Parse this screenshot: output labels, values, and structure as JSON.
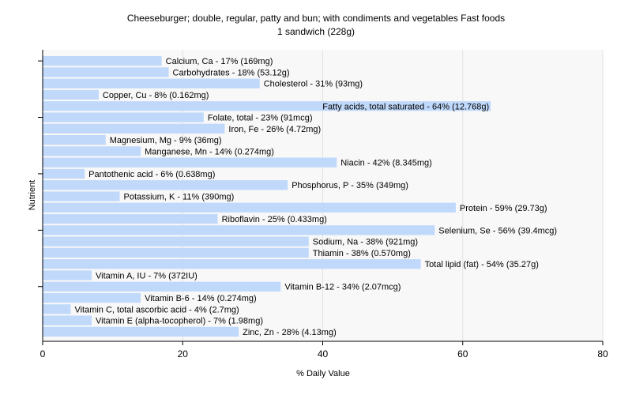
{
  "chart_data": {
    "type": "bar",
    "orientation": "horizontal",
    "title": "Cheeseburger; double, regular, patty and bun; with condiments and vegetables Fast foods",
    "subtitle": "1 sandwich (228g)",
    "xlabel": "% Daily Value",
    "ylabel": "Nutrient",
    "xlim": [
      0,
      80
    ],
    "xticks": [
      0,
      20,
      40,
      60,
      80
    ],
    "grid": true,
    "bar_color": "#c0d9fb",
    "categories": [
      "Calcium, Ca",
      "Carbohydrates",
      "Cholesterol",
      "Copper, Cu",
      "Fatty acids, total saturated",
      "Folate, total",
      "Iron, Fe",
      "Magnesium, Mg",
      "Manganese, Mn",
      "Niacin",
      "Pantothenic acid",
      "Phosphorus, P",
      "Potassium, K",
      "Protein",
      "Riboflavin",
      "Selenium, Se",
      "Sodium, Na",
      "Thiamin",
      "Total lipid (fat)",
      "Vitamin A, IU",
      "Vitamin B-12",
      "Vitamin B-6",
      "Vitamin C, total ascorbic acid",
      "Vitamin E (alpha-tocopherol)",
      "Zinc, Zn"
    ],
    "values": [
      17,
      18,
      31,
      8,
      64,
      23,
      26,
      9,
      14,
      42,
      6,
      35,
      11,
      59,
      25,
      56,
      38,
      38,
      54,
      7,
      34,
      14,
      4,
      7,
      28
    ],
    "labels": [
      "Calcium, Ca - 17% (169mg)",
      "Carbohydrates - 18% (53.12g)",
      "Cholesterol - 31% (93mg)",
      "Copper, Cu - 8% (0.162mg)",
      "Fatty acids, total saturated - 64% (12.768g)",
      "Folate, total - 23% (91mcg)",
      "Iron, Fe - 26% (4.72mg)",
      "Magnesium, Mg - 9% (36mg)",
      "Manganese, Mn - 14% (0.274mg)",
      "Niacin - 42% (8.345mg)",
      "Pantothenic acid - 6% (0.638mg)",
      "Phosphorus, P - 35% (349mg)",
      "Potassium, K - 11% (390mg)",
      "Protein - 59% (29.73g)",
      "Riboflavin - 25% (0.433mg)",
      "Selenium, Se - 56% (39.4mcg)",
      "Sodium, Na - 38% (921mg)",
      "Thiamin - 38% (0.570mg)",
      "Total lipid (fat) - 54% (35.27g)",
      "Vitamin A, IU - 7% (372IU)",
      "Vitamin B-12 - 34% (2.07mcg)",
      "Vitamin B-6 - 14% (0.274mg)",
      "Vitamin C, total ascorbic acid - 4% (2.7mg)",
      "Vitamin E (alpha-tocopherol) - 7% (1.98mg)",
      "Zinc, Zn - 28% (4.13mg)"
    ]
  }
}
